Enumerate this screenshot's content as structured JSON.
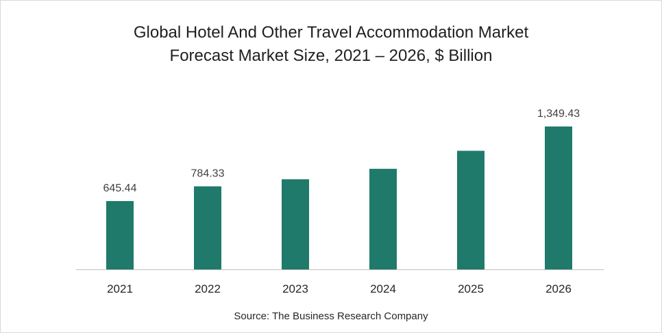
{
  "chart_data": {
    "type": "bar",
    "title_line1": "Global Hotel And Other Travel Accommodation Market",
    "title_line2": "Forecast Market Size, 2021 – 2026, $ Billion",
    "categories": [
      "2021",
      "2022",
      "2023",
      "2024",
      "2025",
      "2026"
    ],
    "values": [
      645.44,
      784.33,
      851,
      950,
      1120,
      1349.43
    ],
    "data_labels": [
      "645.44",
      "784.33",
      "",
      "",
      "",
      "1,349.43"
    ],
    "ylim": [
      0,
      1349.43
    ],
    "xlabel": "",
    "ylabel": "",
    "grid": false,
    "legend": "none",
    "bar_color": "#1f7a6b",
    "source": "Source: The Business Research Company"
  }
}
